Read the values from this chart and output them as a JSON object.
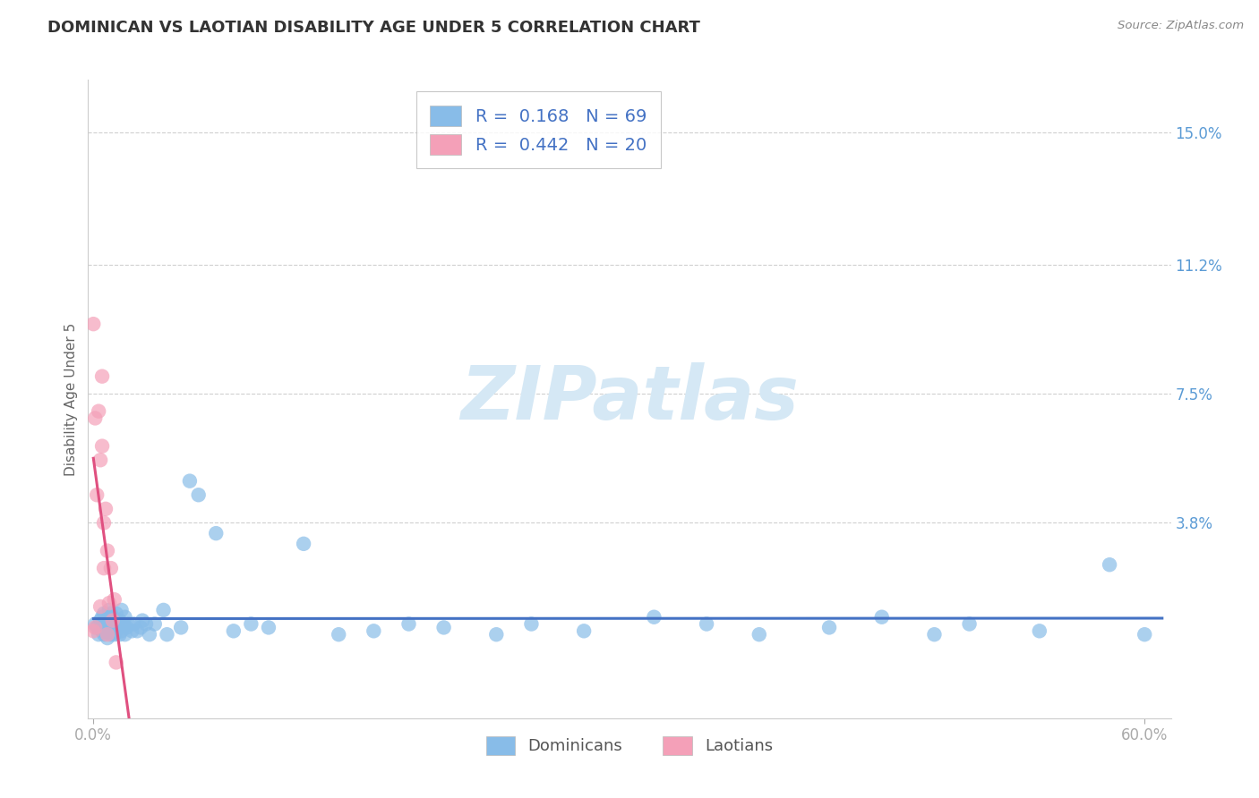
{
  "title": "DOMINICAN VS LAOTIAN DISABILITY AGE UNDER 5 CORRELATION CHART",
  "source": "Source: ZipAtlas.com",
  "ylabel_label": "Disability Age Under 5",
  "r_dominican": 0.168,
  "n_dominican": 69,
  "r_laotian": 0.442,
  "n_laotian": 20,
  "color_dominican": "#88bce8",
  "color_laotian": "#f4a0b8",
  "color_dominican_line": "#4472c4",
  "color_laotian_line": "#e05080",
  "color_gray_line": "#cccccc",
  "color_ytick": "#5b9bd5",
  "color_title": "#333333",
  "color_source": "#888888",
  "color_axis_label": "#666666",
  "watermark_color": "#d5e8f5",
  "xlim": [
    -0.003,
    0.615
  ],
  "ylim": [
    -0.018,
    0.165
  ],
  "xtick_vals": [
    0.0,
    0.6
  ],
  "xtick_labels": [
    "0.0%",
    "60.0%"
  ],
  "gridline_vals": [
    0.038,
    0.075,
    0.112,
    0.15
  ],
  "gridline_labels": [
    "3.8%",
    "7.5%",
    "11.2%",
    "15.0%"
  ],
  "dominican_x": [
    0.001,
    0.002,
    0.003,
    0.004,
    0.005,
    0.005,
    0.006,
    0.006,
    0.007,
    0.007,
    0.008,
    0.008,
    0.009,
    0.009,
    0.009,
    0.01,
    0.01,
    0.01,
    0.011,
    0.011,
    0.012,
    0.012,
    0.013,
    0.013,
    0.014,
    0.015,
    0.015,
    0.016,
    0.016,
    0.017,
    0.018,
    0.018,
    0.019,
    0.02,
    0.022,
    0.023,
    0.025,
    0.027,
    0.028,
    0.03,
    0.032,
    0.035,
    0.04,
    0.042,
    0.05,
    0.055,
    0.06,
    0.07,
    0.08,
    0.09,
    0.1,
    0.12,
    0.14,
    0.16,
    0.18,
    0.2,
    0.23,
    0.25,
    0.28,
    0.32,
    0.35,
    0.38,
    0.42,
    0.45,
    0.48,
    0.5,
    0.54,
    0.58,
    0.6
  ],
  "dominican_y": [
    0.009,
    0.008,
    0.006,
    0.01,
    0.007,
    0.011,
    0.006,
    0.012,
    0.007,
    0.01,
    0.005,
    0.009,
    0.007,
    0.011,
    0.013,
    0.006,
    0.009,
    0.012,
    0.007,
    0.011,
    0.006,
    0.01,
    0.007,
    0.012,
    0.009,
    0.006,
    0.01,
    0.007,
    0.013,
    0.009,
    0.006,
    0.011,
    0.008,
    0.009,
    0.007,
    0.009,
    0.007,
    0.008,
    0.01,
    0.009,
    0.006,
    0.009,
    0.013,
    0.006,
    0.008,
    0.05,
    0.046,
    0.035,
    0.007,
    0.009,
    0.008,
    0.032,
    0.006,
    0.007,
    0.009,
    0.008,
    0.006,
    0.009,
    0.007,
    0.011,
    0.009,
    0.006,
    0.008,
    0.011,
    0.006,
    0.009,
    0.007,
    0.026,
    0.006
  ],
  "laotian_x": [
    0.0,
    0.0,
    0.001,
    0.001,
    0.002,
    0.003,
    0.004,
    0.004,
    0.005,
    0.005,
    0.006,
    0.006,
    0.007,
    0.008,
    0.008,
    0.009,
    0.01,
    0.011,
    0.012,
    0.013
  ],
  "laotian_y": [
    0.095,
    0.007,
    0.068,
    0.008,
    0.046,
    0.07,
    0.056,
    0.014,
    0.08,
    0.06,
    0.025,
    0.038,
    0.042,
    0.006,
    0.03,
    0.015,
    0.025,
    0.01,
    0.016,
    -0.002
  ],
  "dom_trend_x0": 0.0,
  "dom_trend_x1": 0.61,
  "lao_trend_x0": 0.0,
  "lao_trend_x1": 0.065,
  "gray_trend_x0": 0.0,
  "gray_trend_x1": 0.32,
  "legend_bottom_labels": [
    "Dominicans",
    "Laotians"
  ],
  "figsize": [
    14.06,
    8.92
  ],
  "dpi": 100
}
